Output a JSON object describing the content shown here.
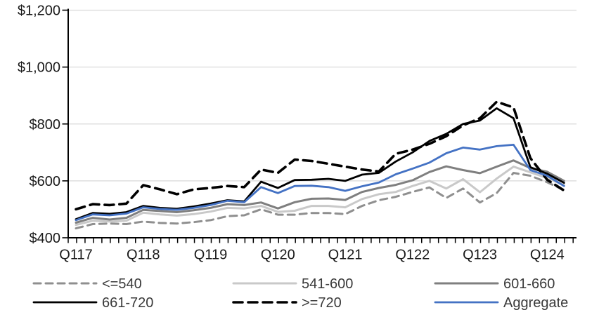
{
  "figure": {
    "kind": "line-chart",
    "background": "#ffffff"
  },
  "y_axis": {
    "tick_labels": [
      "$1,200",
      "$1,000",
      "$800",
      "$600",
      "$400"
    ],
    "min": 400,
    "max": 1200,
    "step": 200
  },
  "x_axis": {
    "tick_labels": [
      "Q117",
      "Q118",
      "Q119",
      "Q120",
      "Q121",
      "Q122",
      "Q123",
      "Q124"
    ]
  },
  "legend": {
    "labels": [
      "<=540",
      "541-600",
      "601-660",
      "661-720",
      ">=720",
      "Aggregate"
    ],
    "position": "bottom",
    "text_color": "#3a3a3a"
  },
  "chart_data": {
    "type": "line",
    "title": "",
    "xlabel": "",
    "ylabel": "",
    "ylim": [
      400,
      1200
    ],
    "y_gridlines": [
      600,
      800,
      1000,
      1200
    ],
    "grid": "horizontal",
    "legend_position": "bottom",
    "x_period": "quarterly 2017Q1 - 2024Q2 (30 points)",
    "x_visible_labels": [
      "Q117",
      "Q118",
      "Q119",
      "Q120",
      "Q121",
      "Q122",
      "Q123",
      "Q124"
    ],
    "series": [
      {
        "name": "<=540",
        "color": "#8f8f8f",
        "style": "dashed",
        "width": 3,
        "values": [
          433,
          448,
          450,
          448,
          457,
          452,
          450,
          455,
          462,
          476,
          479,
          500,
          481,
          481,
          487,
          487,
          483,
          512,
          532,
          544,
          561,
          577,
          540,
          573,
          524,
          557,
          628,
          618,
          595,
          568
        ]
      },
      {
        "name": "541-600",
        "color": "#c9c9c9",
        "style": "solid",
        "width": 3,
        "values": [
          445,
          460,
          457,
          460,
          488,
          482,
          478,
          483,
          492,
          505,
          503,
          512,
          491,
          495,
          512,
          512,
          507,
          536,
          553,
          561,
          582,
          600,
          573,
          606,
          560,
          608,
          650,
          630,
          610,
          585
        ]
      },
      {
        "name": "601-660",
        "color": "#7f7f7f",
        "style": "solid",
        "width": 3,
        "values": [
          453,
          470,
          464,
          470,
          498,
          494,
          490,
          497,
          505,
          518,
          515,
          524,
          503,
          525,
          537,
          538,
          533,
          561,
          575,
          586,
          602,
          631,
          651,
          638,
          627,
          650,
          672,
          645,
          632,
          600
        ]
      },
      {
        "name": "661-720",
        "color": "#000000",
        "style": "solid",
        "width": 2.8,
        "values": [
          465,
          487,
          484,
          490,
          512,
          505,
          502,
          510,
          520,
          532,
          528,
          597,
          575,
          603,
          604,
          607,
          600,
          622,
          628,
          668,
          700,
          740,
          765,
          800,
          812,
          855,
          820,
          648,
          625,
          593
        ]
      },
      {
        "name": ">=720",
        "color": "#000000",
        "style": "dashed",
        "width": 3.6,
        "values": [
          500,
          518,
          515,
          520,
          585,
          570,
          553,
          570,
          575,
          582,
          578,
          640,
          628,
          675,
          670,
          660,
          650,
          640,
          633,
          695,
          710,
          730,
          757,
          795,
          820,
          878,
          858,
          680,
          604,
          566
        ]
      },
      {
        "name": "Aggregate",
        "color": "#4472c4",
        "style": "solid",
        "width": 2.8,
        "values": [
          462,
          482,
          479,
          485,
          507,
          501,
          498,
          505,
          515,
          530,
          525,
          578,
          557,
          582,
          583,
          578,
          565,
          581,
          594,
          623,
          643,
          664,
          697,
          717,
          710,
          722,
          727,
          638,
          618,
          582
        ]
      }
    ],
    "colors": {
      "grid": "#d9d9d9",
      "axis": "#000000",
      "axis_text": "#1a1a1a",
      "accent_blue": "#4472c4"
    }
  }
}
